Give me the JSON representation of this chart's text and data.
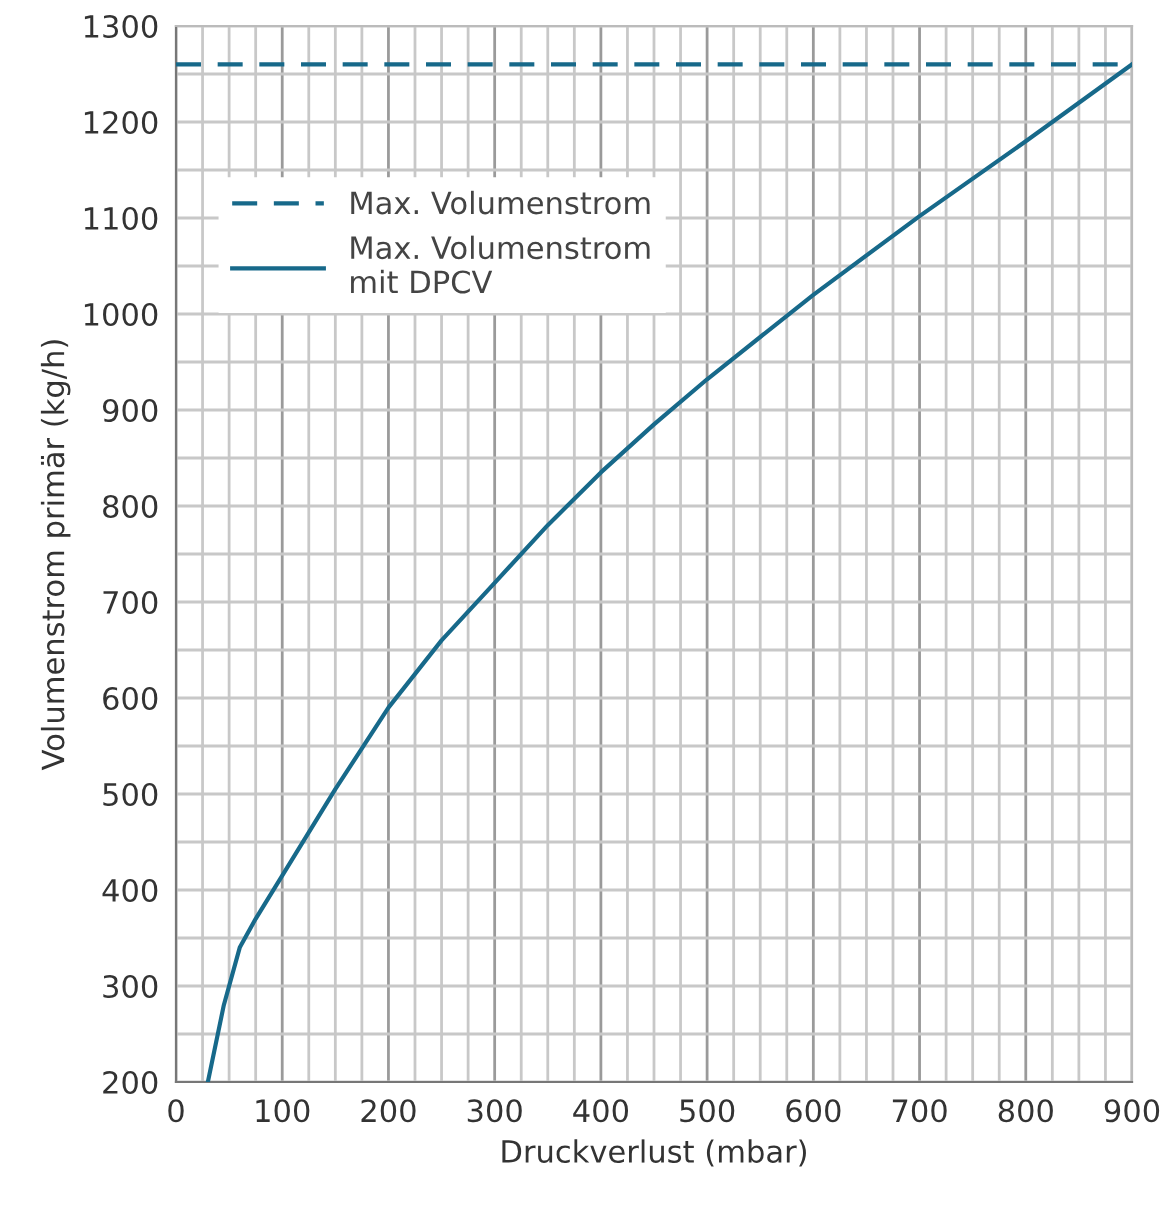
{
  "chart_data": {
    "type": "line",
    "xlabel": "Druckverlust (mbar)",
    "ylabel": "Volumenstrom primär (kg/h)",
    "xlim": [
      0,
      900
    ],
    "ylim": [
      200,
      1300
    ],
    "xticks": [
      0,
      100,
      200,
      300,
      400,
      500,
      600,
      700,
      800,
      900
    ],
    "yticks": [
      200,
      300,
      400,
      500,
      600,
      700,
      800,
      900,
      1000,
      1100,
      1200,
      1300
    ],
    "grid": true,
    "legend": "top left",
    "marker": "none",
    "line_style": "solid",
    "ref_lines": [
      {
        "axis": "y",
        "value": 1260,
        "label": "Max. Volumenstrom",
        "color": "#17698a",
        "line_style": "dashed"
      }
    ],
    "series": [
      {
        "name": "Max. Volumenstrom\nmit DPCV",
        "color": "#17698a",
        "x": [
          30,
          45,
          60,
          75,
          100,
          150,
          200,
          250,
          300,
          350,
          400,
          450,
          500,
          600,
          700,
          800,
          900
        ],
        "values": [
          200,
          280,
          340,
          370,
          415,
          505,
          590,
          660,
          720,
          780,
          835,
          885,
          932,
          1020,
          1102,
          1180,
          1260
        ]
      }
    ]
  }
}
